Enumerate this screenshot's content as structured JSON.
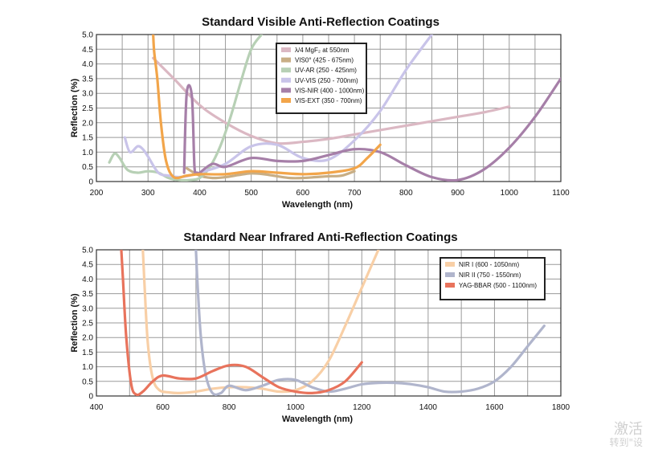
{
  "chart_data": [
    {
      "type": "line",
      "title": "Standard Visible Anti-Reflection Coatings",
      "xlabel": "Wavelength (nm)",
      "ylabel": "Reflection (%)",
      "xlim": [
        200,
        1100
      ],
      "ylim": [
        0,
        5
      ],
      "x_ticks": [
        200,
        300,
        400,
        500,
        600,
        700,
        800,
        900,
        1000,
        1100
      ],
      "y_ticks": [
        "0",
        "0.5",
        "1.0",
        "1.5",
        "2.0",
        "2.5",
        "3.0",
        "3.5",
        "4.0",
        "4.5",
        "5.0"
      ],
      "grid": true,
      "legend_position": "top-center",
      "series": [
        {
          "name": "λ/4 MgF₂ at 550nm",
          "color": "#dbb8c3",
          "x": [
            310,
            350,
            400,
            450,
            500,
            550,
            600,
            650,
            700,
            750,
            800,
            850,
            900,
            950,
            1000
          ],
          "y": [
            4.2,
            3.5,
            2.6,
            2.0,
            1.55,
            1.3,
            1.35,
            1.45,
            1.6,
            1.75,
            1.9,
            2.05,
            2.2,
            2.35,
            2.55
          ]
        },
        {
          "name": "VIS0° (425 - 675nm)",
          "color": "#c8ae85",
          "x": [
            375,
            400,
            425,
            450,
            475,
            500,
            525,
            550,
            575,
            600,
            625,
            650,
            675,
            700
          ],
          "y": [
            0.45,
            0.2,
            0.12,
            0.15,
            0.22,
            0.28,
            0.25,
            0.18,
            0.12,
            0.12,
            0.15,
            0.18,
            0.2,
            0.35
          ]
        },
        {
          "name": "UV-AR (250 - 425nm)",
          "color": "#b7d0b5",
          "x": [
            225,
            235,
            245,
            260,
            280,
            300,
            320,
            340,
            360,
            380,
            400,
            420,
            440,
            460,
            480,
            500,
            520
          ],
          "y": [
            0.65,
            0.95,
            0.8,
            0.4,
            0.3,
            0.35,
            0.3,
            0.12,
            0.05,
            0.05,
            0.12,
            0.5,
            1.2,
            2.2,
            3.4,
            4.5,
            5.0
          ]
        },
        {
          "name": "UV-VIS (250 - 700nm)",
          "color": "#c9c4e9",
          "x": [
            255,
            265,
            280,
            290,
            300,
            320,
            340,
            360,
            380,
            400,
            450,
            500,
            550,
            600,
            650,
            700,
            750,
            800,
            850
          ],
          "y": [
            1.5,
            1.0,
            1.2,
            1.1,
            0.85,
            0.3,
            0.2,
            0.15,
            0.2,
            0.3,
            0.6,
            1.2,
            1.25,
            0.8,
            0.75,
            1.4,
            2.4,
            3.8,
            5.0
          ]
        },
        {
          "name": "VIS-NIR (400 - 1000nm)",
          "color": "#a67fa8",
          "x": [
            370,
            375,
            385,
            390,
            395,
            400,
            425,
            450,
            500,
            550,
            600,
            650,
            700,
            750,
            800,
            850,
            900,
            950,
            1000,
            1050,
            1100
          ],
          "y": [
            0.3,
            3.0,
            2.9,
            0.5,
            0.3,
            0.3,
            0.6,
            0.5,
            0.8,
            0.7,
            0.7,
            0.9,
            1.1,
            1.0,
            0.55,
            0.15,
            0.05,
            0.4,
            1.15,
            2.2,
            3.5
          ]
        },
        {
          "name": "VIS-EXT (350 - 700nm)",
          "color": "#f2a54a",
          "x": [
            310,
            312,
            318,
            325,
            335,
            350,
            375,
            400,
            450,
            500,
            550,
            600,
            650,
            700,
            725,
            750
          ],
          "y": [
            5.0,
            4.4,
            3.5,
            2.0,
            0.7,
            0.15,
            0.2,
            0.25,
            0.25,
            0.35,
            0.3,
            0.25,
            0.3,
            0.45,
            0.8,
            1.25
          ]
        }
      ]
    },
    {
      "type": "line",
      "title": "Standard Near Infrared Anti-Reflection Coatings",
      "xlabel": "Wavelength (nm)",
      "ylabel": "Reflection (%)",
      "xlim": [
        400,
        1800
      ],
      "ylim": [
        0,
        5
      ],
      "x_ticks": [
        400,
        600,
        800,
        1000,
        1200,
        1400,
        1600,
        1800
      ],
      "y_ticks": [
        "0",
        "0.5",
        "1.0",
        "1.5",
        "2.0",
        "2.5",
        "3.0",
        "3.5",
        "4.0",
        "4.5",
        "5.0"
      ],
      "grid": true,
      "legend_position": "top-right",
      "series": [
        {
          "name": "NIR I (600 - 1050nm)",
          "color": "#f8cfa6",
          "x": [
            540,
            545,
            555,
            570,
            590,
            620,
            650,
            700,
            750,
            800,
            850,
            900,
            950,
            1000,
            1050,
            1100,
            1150,
            1200,
            1250
          ],
          "y": [
            5.0,
            3.8,
            1.8,
            0.6,
            0.2,
            0.12,
            0.1,
            0.15,
            0.25,
            0.3,
            0.3,
            0.25,
            0.15,
            0.2,
            0.5,
            1.2,
            2.4,
            3.7,
            5.0
          ]
        },
        {
          "name": "NIR II (750 - 1550nm)",
          "color": "#b0b5cc",
          "x": [
            700,
            705,
            715,
            730,
            750,
            775,
            800,
            850,
            900,
            950,
            1000,
            1050,
            1100,
            1150,
            1200,
            1250,
            1300,
            1350,
            1400,
            1450,
            1500,
            1550,
            1600,
            1650,
            1700,
            1750
          ],
          "y": [
            5.0,
            3.8,
            2.0,
            0.7,
            0.1,
            0.1,
            0.35,
            0.2,
            0.35,
            0.55,
            0.55,
            0.3,
            0.15,
            0.25,
            0.4,
            0.45,
            0.45,
            0.4,
            0.3,
            0.15,
            0.15,
            0.25,
            0.5,
            1.0,
            1.7,
            2.4
          ]
        },
        {
          "name": "YAG-BBAR (500 - 1100nm)",
          "color": "#e8735c",
          "x": [
            475,
            480,
            490,
            505,
            520,
            540,
            570,
            600,
            650,
            700,
            750,
            800,
            850,
            900,
            950,
            1000,
            1050,
            1100,
            1150,
            1200
          ],
          "y": [
            5.0,
            4.0,
            2.0,
            0.4,
            0.05,
            0.15,
            0.5,
            0.7,
            0.6,
            0.6,
            0.85,
            1.05,
            1.0,
            0.65,
            0.3,
            0.15,
            0.1,
            0.2,
            0.5,
            1.15
          ]
        }
      ]
    }
  ],
  "watermark": {
    "line1": "激活",
    "line2": "转到\"设"
  }
}
